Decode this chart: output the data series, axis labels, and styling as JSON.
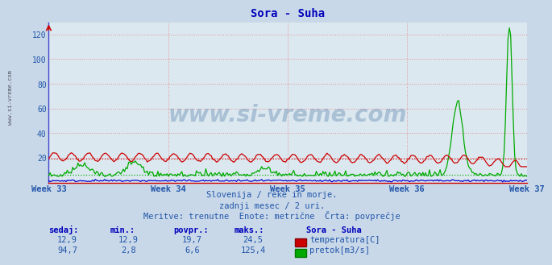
{
  "title": "Sora - Suha",
  "bg_color": "#c8d8e8",
  "plot_bg_color": "#dce8f0",
  "grid_color": "#e08080",
  "xlabel_weeks": [
    "Week 33",
    "Week 34",
    "Week 35",
    "Week 36",
    "Week 37"
  ],
  "ylim": [
    0,
    130
  ],
  "yticks": [
    20,
    40,
    60,
    80,
    100,
    120
  ],
  "temp_color": "#cc0000",
  "flow_color": "#00aa00",
  "level_color": "#0000cc",
  "axis_color": "#4444cc",
  "tick_color": "#2255aa",
  "temp_avg": 19.7,
  "flow_avg": 6.6,
  "temp_min": 12.9,
  "temp_max": 24.5,
  "flow_min": 2.8,
  "flow_max": 125.4,
  "temp_current": 12.9,
  "flow_current": 94.7,
  "subtitle1": "Slovenija / reke in morje.",
  "subtitle2": "zadnji mesec / 2 uri.",
  "subtitle3": "Meritve: trenutne  Enote: metrične  Črta: povprečje",
  "watermark": "www.si-vreme.com",
  "n_points": 360
}
